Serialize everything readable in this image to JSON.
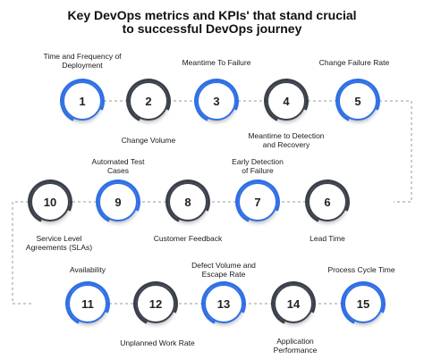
{
  "title": {
    "line1": "Key DevOps metrics and KPIs' that stand crucial",
    "line2": "to successful DevOps journey"
  },
  "colors": {
    "blue": "#2f6fe4",
    "dark": "#3a3f4a"
  },
  "metrics": [
    {
      "num": "1",
      "line1": "Time and Frequency of",
      "line2": "Deployment"
    },
    {
      "num": "2",
      "line1": "Change Volume",
      "line2": ""
    },
    {
      "num": "3",
      "line1": "Meantime To Failure",
      "line2": ""
    },
    {
      "num": "4",
      "line1": "Meantime to Detection",
      "line2": "and Recovery"
    },
    {
      "num": "5",
      "line1": "Change Failure Rate",
      "line2": ""
    },
    {
      "num": "6",
      "line1": "Lead Time",
      "line2": ""
    },
    {
      "num": "7",
      "line1": "Early Detection",
      "line2": "of Failure"
    },
    {
      "num": "8",
      "line1": "Customer Feedback",
      "line2": ""
    },
    {
      "num": "9",
      "line1": "Automated Test",
      "line2": "Cases"
    },
    {
      "num": "10",
      "line1": "Service Level",
      "line2": "Agreements (SLAs)"
    },
    {
      "num": "11",
      "line1": "Availability",
      "line2": ""
    },
    {
      "num": "12",
      "line1": "Unplanned Work Rate",
      "line2": ""
    },
    {
      "num": "13",
      "line1": "Defect Volume and",
      "line2": "Escape Rate"
    },
    {
      "num": "14",
      "line1": "Application",
      "line2": "Performance"
    },
    {
      "num": "15",
      "line1": "Process Cycle Time",
      "line2": ""
    }
  ]
}
